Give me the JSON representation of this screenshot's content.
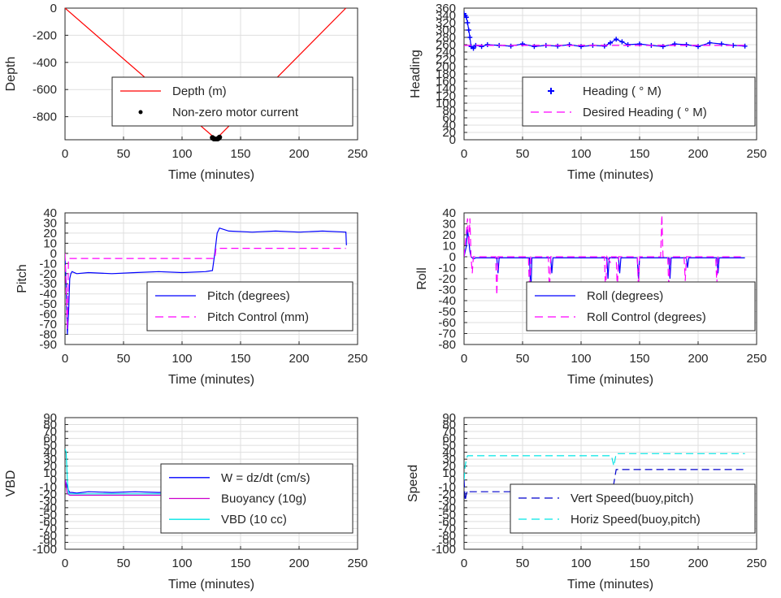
{
  "figure": {
    "background": "#ffffff",
    "grid_color": "#dfdfdf",
    "axis_color": "#262626"
  },
  "chart_data": [
    {
      "id": "depth",
      "type": "line",
      "xlabel": "Time (minutes)",
      "ylabel": "Depth",
      "xlim": [
        0,
        250
      ],
      "ylim": [
        -970,
        0
      ],
      "xticks": [
        0,
        50,
        100,
        150,
        200,
        250
      ],
      "xtick_labels": [
        "0",
        "50",
        "100",
        "150",
        "200",
        "250"
      ],
      "yticks": [
        0,
        -200,
        -400,
        -600,
        -800
      ],
      "ytick_labels": [
        "0",
        "-200",
        "-400",
        "-600",
        "-800"
      ],
      "grid": true,
      "legend_position": "center",
      "series": [
        {
          "name": "Depth (m)",
          "style": "solid",
          "color": "#ff0000",
          "x": [
            0,
            129,
            240
          ],
          "y": [
            0,
            -965,
            0
          ]
        },
        {
          "name": "Non-zero motor current",
          "style": "dots",
          "color": "#000000",
          "x": [
            126,
            127,
            128,
            129,
            130,
            131,
            132
          ],
          "y": [
            -955,
            -962,
            -966,
            -967,
            -965,
            -960,
            -952
          ]
        }
      ]
    },
    {
      "id": "heading",
      "type": "scatter",
      "xlabel": "Time (minutes)",
      "ylabel": "Heading",
      "xlim": [
        0,
        250
      ],
      "ylim": [
        0,
        360
      ],
      "xticks": [
        0,
        50,
        100,
        150,
        200,
        250
      ],
      "xtick_labels": [
        "0",
        "50",
        "100",
        "150",
        "200",
        "250"
      ],
      "yticks": [
        0,
        20,
        40,
        60,
        80,
        100,
        120,
        140,
        160,
        180,
        200,
        220,
        240,
        260,
        280,
        300,
        320,
        340,
        360
      ],
      "ytick_labels": [
        "0",
        "20",
        "40",
        "60",
        "80",
        "100",
        "120",
        "140",
        "160",
        "180",
        "200",
        "220",
        "240",
        "260",
        "280",
        "300",
        "320",
        "340",
        "360"
      ],
      "grid": true,
      "legend_position": "bottom-right",
      "series": [
        {
          "name": "Heading (   ° M)",
          "style": "plus",
          "color": "#0000ff",
          "x": [
            0,
            1,
            2,
            3,
            4,
            5,
            6,
            8,
            10,
            15,
            20,
            30,
            40,
            50,
            60,
            70,
            80,
            90,
            100,
            110,
            120,
            125,
            130,
            135,
            140,
            150,
            160,
            170,
            180,
            190,
            200,
            210,
            220,
            230,
            240
          ],
          "y": [
            345,
            340,
            335,
            320,
            300,
            280,
            255,
            250,
            258,
            255,
            260,
            258,
            256,
            262,
            255,
            258,
            256,
            260,
            255,
            258,
            256,
            265,
            275,
            268,
            260,
            262,
            258,
            255,
            262,
            260,
            255,
            265,
            262,
            258,
            256
          ]
        },
        {
          "name": "Desired Heading (      ° M)",
          "style": "dashed",
          "color": "#ff00ff",
          "x": [
            0,
            240
          ],
          "y": [
            258,
            258
          ]
        }
      ]
    },
    {
      "id": "pitch",
      "type": "line",
      "xlabel": "Time (minutes)",
      "ylabel": "Pitch",
      "xlim": [
        0,
        250
      ],
      "ylim": [
        -90,
        40
      ],
      "xticks": [
        0,
        50,
        100,
        150,
        200,
        250
      ],
      "xtick_labels": [
        "0",
        "50",
        "100",
        "150",
        "200",
        "250"
      ],
      "yticks": [
        40,
        30,
        20,
        10,
        0,
        -10,
        -20,
        -30,
        -40,
        -50,
        -60,
        -70,
        -80,
        -90
      ],
      "ytick_labels": [
        "40",
        "30",
        "20",
        "10",
        "0",
        "-10",
        "-20",
        "-30",
        "-40",
        "-50",
        "-60",
        "-70",
        "-80",
        "-90"
      ],
      "grid": true,
      "legend_position": "bottom-right",
      "series": [
        {
          "name": "Pitch (degrees)",
          "style": "solid",
          "color": "#0000ff",
          "x": [
            0,
            1,
            2,
            3,
            4,
            5,
            6,
            10,
            20,
            40,
            60,
            80,
            100,
            120,
            126,
            128,
            130,
            132,
            140,
            160,
            180,
            200,
            220,
            240,
            240.5
          ],
          "y": [
            -5,
            -30,
            -80,
            -60,
            -25,
            -20,
            -18,
            -20,
            -19,
            -20,
            -19,
            -18,
            -19,
            -18,
            -17,
            0,
            20,
            25,
            22,
            21,
            22,
            21,
            22,
            21,
            8
          ]
        },
        {
          "name": "Pitch Control (mm)",
          "style": "dashed",
          "color": "#ff00ff",
          "x": [
            0,
            2,
            3,
            4,
            128,
            129,
            130,
            240
          ],
          "y": [
            0,
            -75,
            -5,
            -5,
            -5,
            5,
            5,
            5
          ]
        }
      ]
    },
    {
      "id": "roll",
      "type": "line",
      "xlabel": "Time (minutes)",
      "ylabel": "Roll",
      "xlim": [
        0,
        250
      ],
      "ylim": [
        -80,
        40
      ],
      "xticks": [
        0,
        50,
        100,
        150,
        200,
        250
      ],
      "xtick_labels": [
        "0",
        "50",
        "100",
        "150",
        "200",
        "250"
      ],
      "yticks": [
        40,
        30,
        20,
        10,
        0,
        -10,
        -20,
        -30,
        -40,
        -50,
        -60,
        -70,
        -80
      ],
      "ytick_labels": [
        "40",
        "30",
        "20",
        "10",
        "0",
        "-10",
        "-20",
        "-30",
        "-40",
        "-50",
        "-60",
        "-70",
        "-80"
      ],
      "grid": true,
      "legend_position": "bottom-right",
      "series": [
        {
          "name": "Roll (degrees)",
          "style": "solid",
          "color": "#0000ff",
          "x": [
            0,
            2,
            3,
            4,
            5,
            6,
            8,
            10,
            28,
            29,
            30,
            56,
            57,
            58,
            74,
            75,
            76,
            122,
            123,
            124,
            132,
            133,
            134,
            148,
            149,
            150,
            170,
            175,
            176,
            177,
            190,
            191,
            192,
            216,
            217,
            218,
            240
          ],
          "y": [
            0,
            10,
            25,
            15,
            5,
            0,
            -2,
            -1,
            -1,
            -15,
            -1,
            -1,
            -35,
            -1,
            -1,
            -15,
            -1,
            -1,
            -20,
            -1,
            -1,
            -15,
            -1,
            -1,
            -20,
            -1,
            -1,
            -1,
            -20,
            -1,
            -1,
            -10,
            -1,
            -1,
            -15,
            -1,
            -1
          ]
        },
        {
          "name": "Roll Control (degrees)",
          "style": "dashed",
          "color": "#ff00ff",
          "x": [
            0,
            3,
            4,
            5,
            6,
            7,
            8,
            9,
            27,
            28,
            29,
            55,
            56,
            57,
            72,
            73,
            74,
            120,
            121,
            122,
            125,
            126,
            130,
            131,
            132,
            148,
            149,
            150,
            168,
            169,
            170,
            174,
            175,
            176,
            188,
            189,
            190,
            215,
            216,
            217,
            240
          ],
          "y": [
            0,
            35,
            10,
            35,
            0,
            -15,
            0,
            0,
            0,
            -35,
            0,
            0,
            -35,
            0,
            0,
            -33,
            0,
            0,
            -35,
            0,
            -5,
            0,
            0,
            -30,
            0,
            0,
            -28,
            0,
            0,
            38,
            0,
            0,
            -30,
            0,
            0,
            -22,
            0,
            0,
            -25,
            0,
            0
          ]
        }
      ]
    },
    {
      "id": "vbd",
      "type": "line",
      "xlabel": "Time (minutes)",
      "ylabel": "VBD",
      "xlim": [
        0,
        250
      ],
      "ylim": [
        -100,
        90
      ],
      "xticks": [
        0,
        50,
        100,
        150,
        200,
        250
      ],
      "xtick_labels": [
        "0",
        "50",
        "100",
        "150",
        "200",
        "250"
      ],
      "yticks": [
        90,
        80,
        70,
        60,
        50,
        40,
        30,
        20,
        10,
        0,
        -10,
        -20,
        -30,
        -40,
        -50,
        -60,
        -70,
        -80,
        -90,
        -100
      ],
      "ytick_labels": [
        "90",
        "80",
        "70",
        "60",
        "50",
        "40",
        "30",
        "20",
        "10",
        "0",
        "-10",
        "-20",
        "-30",
        "-40",
        "-50",
        "-60",
        "-70",
        "-80",
        "-90",
        "-100"
      ],
      "grid": true,
      "legend_position": "bottom-right",
      "series": [
        {
          "name": "W = dz/dt (cm/s)",
          "style": "solid",
          "color": "#0000ff",
          "x": [
            0,
            2,
            3,
            4,
            6,
            10,
            20,
            40,
            60,
            80,
            100,
            120,
            126,
            128,
            130,
            132,
            140,
            160,
            180,
            200,
            220,
            240
          ],
          "y": [
            0,
            -10,
            -15,
            -18,
            -18,
            -19,
            -17,
            -18,
            -17,
            -18,
            -17,
            -18,
            -17,
            -5,
            10,
            12,
            13,
            12,
            13,
            12,
            13,
            12
          ]
        },
        {
          "name": "Buoyancy (10g)",
          "style": "solid",
          "color": "#cc00cc",
          "x": [
            0,
            2,
            4,
            126,
            130,
            240
          ],
          "y": [
            0,
            -20,
            -22,
            -22,
            18,
            18
          ]
        },
        {
          "name": "VBD (10 cc)",
          "style": "solid",
          "color": "#00e5e5",
          "x": [
            0,
            1,
            2,
            3,
            126,
            130,
            240
          ],
          "y": [
            45,
            40,
            0,
            -20,
            -20,
            22,
            22
          ]
        }
      ]
    },
    {
      "id": "speed",
      "type": "line",
      "xlabel": "Time (minutes)",
      "ylabel": "Speed",
      "xlim": [
        0,
        250
      ],
      "ylim": [
        -100,
        90
      ],
      "xticks": [
        0,
        50,
        100,
        150,
        200,
        250
      ],
      "xtick_labels": [
        "0",
        "50",
        "100",
        "150",
        "200",
        "250"
      ],
      "yticks": [
        90,
        80,
        70,
        60,
        50,
        40,
        30,
        20,
        10,
        0,
        -10,
        -20,
        -30,
        -40,
        -50,
        -60,
        -70,
        -80,
        -90,
        -100
      ],
      "ytick_labels": [
        "90",
        "80",
        "70",
        "60",
        "50",
        "40",
        "30",
        "20",
        "10",
        "0",
        "-10",
        "-20",
        "-30",
        "-40",
        "-50",
        "-60",
        "-70",
        "-80",
        "-90",
        "-100"
      ],
      "grid": true,
      "legend_position": "bottom-right",
      "series": [
        {
          "name": "Vert Speed(buoy,pitch)",
          "style": "dashed",
          "color": "#0000cc",
          "x": [
            0,
            1,
            2,
            3,
            4,
            6,
            126,
            128,
            130,
            132,
            240
          ],
          "y": [
            0,
            -30,
            -20,
            -15,
            -17,
            -17,
            -17,
            -5,
            15,
            15,
            15
          ]
        },
        {
          "name": "Horiz Speed(buoy,pitch)",
          "style": "dashed",
          "color": "#00e5e5",
          "x": [
            0,
            1,
            2,
            3,
            4,
            126,
            128,
            130,
            240
          ],
          "y": [
            0,
            20,
            30,
            35,
            35,
            35,
            20,
            38,
            38
          ]
        }
      ]
    }
  ]
}
